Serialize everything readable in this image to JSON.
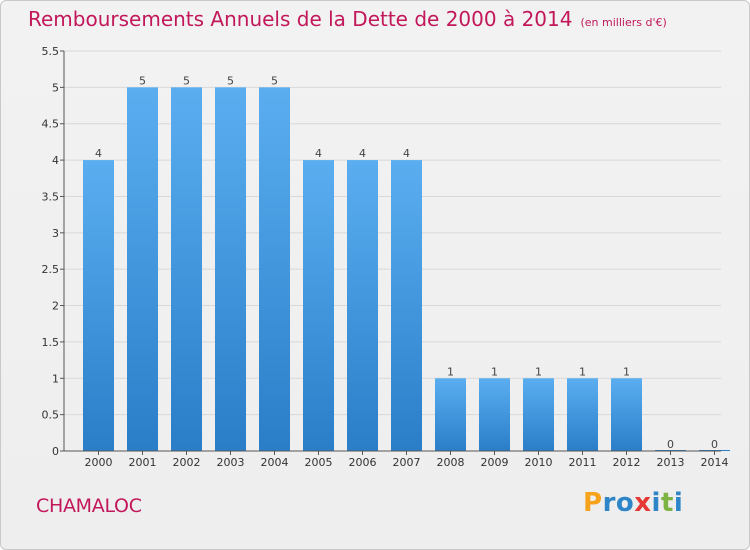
{
  "header": {
    "title": "Remboursements Annuels de la Dette de 2000 à 2014",
    "unit_note": "(en milliers d'€)"
  },
  "footer": {
    "commune": "CHAMALOC",
    "logo": {
      "letters": [
        "P",
        "r",
        "o",
        "x",
        "i",
        "t",
        "i"
      ],
      "colors": [
        "#f7a21b",
        "#2e86c9",
        "#2e86c9",
        "#e53935",
        "#2e86c9",
        "#7cb342",
        "#2e86c9"
      ]
    }
  },
  "chart_data": {
    "type": "bar",
    "categories": [
      "2000",
      "2001",
      "2002",
      "2003",
      "2004",
      "2005",
      "2006",
      "2007",
      "2008",
      "2009",
      "2010",
      "2011",
      "2012",
      "2013",
      "2014"
    ],
    "values": [
      4,
      5,
      5,
      5,
      5,
      4,
      4,
      4,
      1,
      1,
      1,
      1,
      1,
      0,
      0
    ],
    "data_labels": [
      "4",
      "5",
      "5",
      "5",
      "5",
      "4",
      "4",
      "4",
      "1",
      "1",
      "1",
      "1",
      "1",
      "0",
      "0"
    ],
    "y_ticks": [
      "0",
      "0.5",
      "1",
      "1.5",
      "2",
      "2.5",
      "3",
      "3.5",
      "4",
      "4.5",
      "5",
      "5.5"
    ],
    "ylim": [
      0,
      5.5
    ],
    "grid": true,
    "colors": {
      "bar_top": "#5aaef0",
      "bar_bottom": "#2a7ec8",
      "grid": "#d8d8d8",
      "axis": "#555555"
    }
  }
}
